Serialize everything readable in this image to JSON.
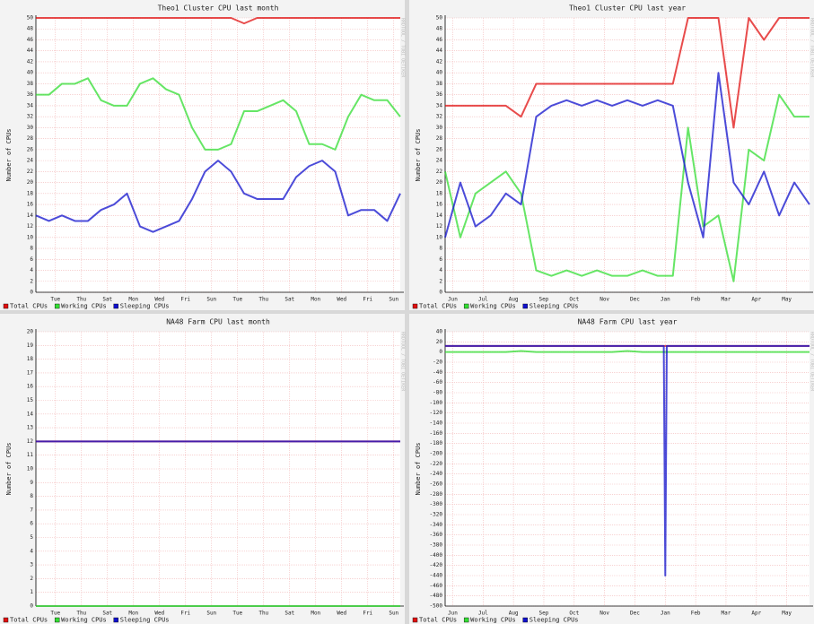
{
  "watermark": "RRDTOOL / TOBI OETIKER",
  "chart_data": [
    {
      "type": "line",
      "title": "Theo1 Cluster CPU last month",
      "y_label": "Number of CPUs",
      "x": [
        0,
        1,
        2,
        3,
        4,
        5,
        6,
        7,
        8,
        9,
        10,
        11,
        12,
        13,
        14,
        15,
        16,
        17,
        18,
        19,
        20,
        21,
        22,
        23,
        24,
        25,
        26,
        27,
        28
      ],
      "xlim": [
        0,
        28
      ],
      "xticks": [
        {
          "value": 1.5,
          "label": "Tue"
        },
        {
          "value": 3.5,
          "label": "Thu"
        },
        {
          "value": 5.5,
          "label": "Sat"
        },
        {
          "value": 7.5,
          "label": "Mon"
        },
        {
          "value": 9.5,
          "label": "Wed"
        },
        {
          "value": 11.5,
          "label": "Fri"
        },
        {
          "value": 13.5,
          "label": "Sun"
        },
        {
          "value": 15.5,
          "label": "Tue"
        },
        {
          "value": 17.5,
          "label": "Thu"
        },
        {
          "value": 19.5,
          "label": "Sat"
        },
        {
          "value": 21.5,
          "label": "Mon"
        },
        {
          "value": 23.5,
          "label": "Wed"
        },
        {
          "value": 25.5,
          "label": "Fri"
        },
        {
          "value": 27.5,
          "label": "Sun"
        }
      ],
      "ylim": [
        0,
        50
      ],
      "yticks": [
        0,
        2,
        4,
        6,
        8,
        10,
        12,
        14,
        16,
        18,
        20,
        22,
        24,
        26,
        28,
        30,
        32,
        34,
        36,
        38,
        40,
        42,
        44,
        46,
        48,
        50
      ],
      "grid": true,
      "series": [
        {
          "name": "Total CPUs",
          "color": "#e01010",
          "values": [
            50,
            50,
            50,
            50,
            50,
            50,
            50,
            50,
            50,
            50,
            50,
            50,
            50,
            50,
            50,
            50,
            49,
            50,
            50,
            50,
            50,
            50,
            50,
            50,
            50,
            50,
            50,
            50,
            50
          ]
        },
        {
          "name": "Working CPUs",
          "color": "#33dd33",
          "values": [
            36,
            36,
            38,
            38,
            39,
            35,
            34,
            34,
            38,
            39,
            37,
            36,
            30,
            26,
            26,
            27,
            33,
            33,
            34,
            35,
            33,
            27,
            27,
            26,
            32,
            36,
            35,
            35,
            32
          ]
        },
        {
          "name": "Sleeping CPUs",
          "color": "#1010cc",
          "values": [
            14,
            13,
            14,
            13,
            13,
            15,
            16,
            18,
            12,
            11,
            12,
            13,
            17,
            22,
            24,
            22,
            18,
            17,
            17,
            17,
            21,
            23,
            24,
            22,
            14,
            15,
            15,
            13,
            18
          ]
        }
      ]
    },
    {
      "type": "line",
      "title": "Theo1 Cluster CPU last year",
      "y_label": "Number of CPUs",
      "x": [
        0,
        0.5,
        1,
        1.5,
        2,
        2.5,
        3,
        3.5,
        4,
        4.5,
        5,
        5.5,
        6,
        6.5,
        7,
        7.5,
        8,
        8.5,
        9,
        9.5,
        10,
        10.5,
        11,
        11.5,
        12
      ],
      "xlim": [
        0,
        12
      ],
      "xticks": [
        {
          "value": 0.25,
          "label": "Jun"
        },
        {
          "value": 1.25,
          "label": "Jul"
        },
        {
          "value": 2.25,
          "label": "Aug"
        },
        {
          "value": 3.25,
          "label": "Sep"
        },
        {
          "value": 4.25,
          "label": "Oct"
        },
        {
          "value": 5.25,
          "label": "Nov"
        },
        {
          "value": 6.25,
          "label": "Dec"
        },
        {
          "value": 7.25,
          "label": "Jan"
        },
        {
          "value": 8.25,
          "label": "Feb"
        },
        {
          "value": 9.25,
          "label": "Mar"
        },
        {
          "value": 10.25,
          "label": "Apr"
        },
        {
          "value": 11.25,
          "label": "May"
        }
      ],
      "ylim": [
        0,
        50
      ],
      "yticks": [
        0,
        2,
        4,
        6,
        8,
        10,
        12,
        14,
        16,
        18,
        20,
        22,
        24,
        26,
        28,
        30,
        32,
        34,
        36,
        38,
        40,
        42,
        44,
        46,
        48,
        50
      ],
      "grid": true,
      "series": [
        {
          "name": "Total CPUs",
          "color": "#e01010",
          "values": [
            34,
            34,
            34,
            34,
            34,
            32,
            38,
            38,
            38,
            38,
            38,
            38,
            38,
            38,
            38,
            38,
            50,
            50,
            50,
            30,
            50,
            46,
            50,
            50,
            50
          ]
        },
        {
          "name": "Working CPUs",
          "color": "#33dd33",
          "values": [
            22,
            10,
            18,
            20,
            22,
            18,
            4,
            3,
            4,
            3,
            4,
            3,
            3,
            4,
            3,
            3,
            30,
            12,
            14,
            2,
            26,
            24,
            36,
            32,
            32
          ]
        },
        {
          "name": "Sleeping CPUs",
          "color": "#1010cc",
          "values": [
            10,
            20,
            12,
            14,
            18,
            16,
            32,
            34,
            35,
            34,
            35,
            34,
            35,
            34,
            35,
            34,
            20,
            10,
            40,
            20,
            16,
            22,
            14,
            20,
            16
          ]
        }
      ]
    },
    {
      "type": "line",
      "title": "NA48 Farm CPU last month",
      "y_label": "Number of CPUs",
      "x": [
        0,
        1,
        2,
        3,
        4,
        5,
        6,
        7,
        8,
        9,
        10,
        11,
        12,
        13,
        14,
        15,
        16,
        17,
        18,
        19,
        20,
        21,
        22,
        23,
        24,
        25,
        26,
        27,
        28
      ],
      "xlim": [
        0,
        28
      ],
      "xticks": [
        {
          "value": 1.5,
          "label": "Tue"
        },
        {
          "value": 3.5,
          "label": "Thu"
        },
        {
          "value": 5.5,
          "label": "Sat"
        },
        {
          "value": 7.5,
          "label": "Mon"
        },
        {
          "value": 9.5,
          "label": "Wed"
        },
        {
          "value": 11.5,
          "label": "Fri"
        },
        {
          "value": 13.5,
          "label": "Sun"
        },
        {
          "value": 15.5,
          "label": "Tue"
        },
        {
          "value": 17.5,
          "label": "Thu"
        },
        {
          "value": 19.5,
          "label": "Sat"
        },
        {
          "value": 21.5,
          "label": "Mon"
        },
        {
          "value": 23.5,
          "label": "Wed"
        },
        {
          "value": 25.5,
          "label": "Fri"
        },
        {
          "value": 27.5,
          "label": "Sun"
        }
      ],
      "ylim": [
        0,
        20
      ],
      "yticks": [
        0,
        1,
        2,
        3,
        4,
        5,
        6,
        7,
        8,
        9,
        10,
        11,
        12,
        13,
        14,
        15,
        16,
        17,
        18,
        19,
        20
      ],
      "grid": true,
      "series": [
        {
          "name": "Total CPUs",
          "color": "#e01010",
          "values": [
            12,
            12,
            12,
            12,
            12,
            12,
            12,
            12,
            12,
            12,
            12,
            12,
            12,
            12,
            12,
            12,
            12,
            12,
            12,
            12,
            12,
            12,
            12,
            12,
            12,
            12,
            12,
            12,
            12
          ]
        },
        {
          "name": "Working CPUs",
          "color": "#33dd33",
          "values": [
            0,
            0,
            0,
            0,
            0,
            0,
            0,
            0,
            0,
            0,
            0,
            0,
            0,
            0,
            0,
            0,
            0,
            0,
            0,
            0,
            0,
            0,
            0,
            0,
            0,
            0,
            0,
            0,
            0
          ]
        },
        {
          "name": "Sleeping CPUs",
          "color": "#1010cc",
          "values": [
            12,
            12,
            12,
            12,
            12,
            12,
            12,
            12,
            12,
            12,
            12,
            12,
            12,
            12,
            12,
            12,
            12,
            12,
            12,
            12,
            12,
            12,
            12,
            12,
            12,
            12,
            12,
            12,
            12
          ]
        }
      ]
    },
    {
      "type": "line",
      "title": "NA48 Farm CPU last year",
      "y_label": "Number of CPUs",
      "x": [
        0,
        0.5,
        1,
        1.5,
        2,
        2.5,
        3,
        3.5,
        4,
        4.5,
        5,
        5.5,
        6,
        6.5,
        7,
        7.2,
        7.25,
        7.3,
        7.5,
        8,
        8.5,
        9,
        9.5,
        10,
        10.5,
        11,
        11.5,
        12
      ],
      "xlim": [
        0,
        12
      ],
      "xticks": [
        {
          "value": 0.25,
          "label": "Jun"
        },
        {
          "value": 1.25,
          "label": "Jul"
        },
        {
          "value": 2.25,
          "label": "Aug"
        },
        {
          "value": 3.25,
          "label": "Sep"
        },
        {
          "value": 4.25,
          "label": "Oct"
        },
        {
          "value": 5.25,
          "label": "Nov"
        },
        {
          "value": 6.25,
          "label": "Dec"
        },
        {
          "value": 7.25,
          "label": "Jan"
        },
        {
          "value": 8.25,
          "label": "Feb"
        },
        {
          "value": 9.25,
          "label": "Mar"
        },
        {
          "value": 10.25,
          "label": "Apr"
        },
        {
          "value": 11.25,
          "label": "May"
        }
      ],
      "ylim": [
        -500,
        40
      ],
      "yticks": [
        -500,
        -480,
        -460,
        -440,
        -420,
        -400,
        -380,
        -360,
        -340,
        -320,
        -300,
        -280,
        -260,
        -240,
        -220,
        -200,
        -180,
        -160,
        -140,
        -120,
        -100,
        -80,
        -60,
        -40,
        -20,
        0,
        20,
        40
      ],
      "grid": true,
      "series": [
        {
          "name": "Total CPUs",
          "color": "#e01010",
          "values": [
            12,
            12,
            12,
            12,
            12,
            12,
            12,
            12,
            12,
            12,
            12,
            12,
            12,
            12,
            12,
            12,
            12,
            12,
            12,
            12,
            12,
            12,
            12,
            12,
            12,
            12,
            12,
            12
          ]
        },
        {
          "name": "Working CPUs",
          "color": "#33dd33",
          "values": [
            0,
            0,
            0,
            0,
            0,
            2,
            0,
            0,
            0,
            0,
            0,
            0,
            2,
            0,
            0,
            0,
            0,
            0,
            0,
            0,
            0,
            0,
            0,
            0,
            0,
            0,
            0,
            0
          ]
        },
        {
          "name": "Sleeping CPUs",
          "color": "#1010cc",
          "values": [
            12,
            12,
            12,
            12,
            12,
            12,
            12,
            12,
            12,
            12,
            12,
            12,
            12,
            12,
            12,
            12,
            -440,
            12,
            12,
            12,
            12,
            12,
            12,
            12,
            12,
            12,
            12,
            12
          ]
        }
      ]
    }
  ]
}
